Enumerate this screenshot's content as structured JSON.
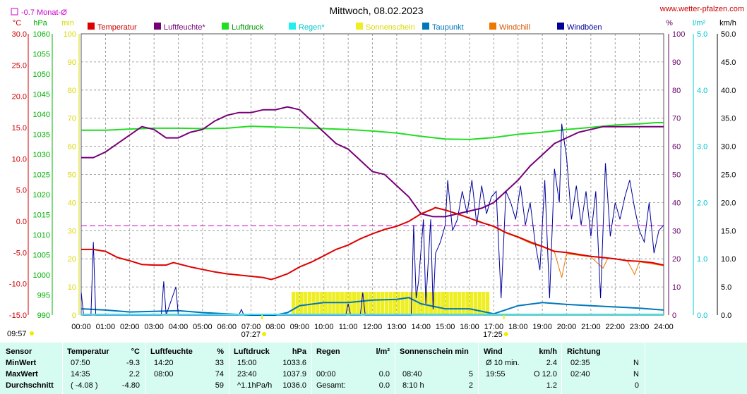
{
  "header": {
    "title": "Mittwoch, 08.02.2023",
    "site": "www.wetter-pfalzen.com",
    "avg_marker": "-0.7 Monat-Ø"
  },
  "chart_data": {
    "type": "line",
    "title": "Mittwoch, 08.02.2023",
    "x_ticks": [
      "00:00",
      "01:00",
      "02:00",
      "03:00",
      "04:00",
      "05:00",
      "06:00",
      "07:00",
      "08:00",
      "09:00",
      "10:00",
      "11:00",
      "12:00",
      "13:00",
      "14:00",
      "15:00",
      "16:00",
      "17:00",
      "18:00",
      "19:00",
      "20:00",
      "21:00",
      "22:00",
      "23:00",
      "24:00"
    ],
    "sunrise": "07:27",
    "sunset": "17:25",
    "top_left_time": "09:57",
    "axes": {
      "temperature": {
        "unit": "°C",
        "min": -15,
        "max": 30,
        "ticks": [
          "30.0",
          "25.0",
          "20.0",
          "15.0",
          "10.0",
          "5.0",
          "0.0",
          "-5.0",
          "-10.0",
          "-15.0"
        ],
        "color": "#cc0000"
      },
      "pressure": {
        "unit": "hPa",
        "min": 990,
        "max": 1060,
        "ticks": [
          "1060",
          "1055",
          "1050",
          "1045",
          "1040",
          "1035",
          "1030",
          "1025",
          "1020",
          "1015",
          "1010",
          "1005",
          "1000",
          "995",
          "990"
        ],
        "color": "#00b000"
      },
      "sunshine": {
        "unit": "min",
        "min": 0,
        "max": 100,
        "ticks": [
          "100",
          "90",
          "80",
          "70",
          "60",
          "50",
          "40",
          "30",
          "20",
          "10",
          "0"
        ],
        "color": "#d8d800"
      },
      "humidity": {
        "unit": "%",
        "min": 0,
        "max": 100,
        "ticks": [
          "100",
          "90",
          "80",
          "70",
          "60",
          "50",
          "40",
          "30",
          "20",
          "10",
          "0"
        ],
        "color": "#660066"
      },
      "rain": {
        "unit": "l/m²",
        "min": 0,
        "max": 5,
        "ticks": [
          "5.0",
          "4.0",
          "3.0",
          "2.0",
          "1.0",
          "0.0"
        ],
        "color": "#00c8d0"
      },
      "wind": {
        "unit": "km/h",
        "min": 0,
        "max": 50,
        "ticks": [
          "50.0",
          "45.0",
          "40.0",
          "35.0",
          "30.0",
          "25.0",
          "20.0",
          "15.0",
          "10.0",
          "5.0",
          "0.0"
        ],
        "color": "#000000"
      }
    },
    "legend": [
      {
        "name": "Temperatur",
        "color": "#dd0000",
        "text_color": "#cc0000"
      },
      {
        "name": "Luftfeuchte*",
        "color": "#770077",
        "text_color": "#770077"
      },
      {
        "name": "Luftdruck",
        "color": "#22dd22",
        "text_color": "#009900"
      },
      {
        "name": "Regen*",
        "color": "#22eeee",
        "text_color": "#00c8c8"
      },
      {
        "name": "Sonnenschein",
        "color": "#eeee22",
        "text_color": "#d8d800"
      },
      {
        "name": "Taupunkt",
        "color": "#0077bb",
        "text_color": "#0077bb"
      },
      {
        "name": "Windchill",
        "color": "#ee7700",
        "text_color": "#dd5500"
      },
      {
        "name": "Windböen",
        "color": "#000099",
        "text_color": "#000099"
      }
    ],
    "monthly_avg_temp": -0.7,
    "series": {
      "temperature": [
        [
          0,
          -4.5
        ],
        [
          0.5,
          -4.5
        ],
        [
          1,
          -4.8
        ],
        [
          1.5,
          -5.8
        ],
        [
          2,
          -6.3
        ],
        [
          2.5,
          -6.9
        ],
        [
          3,
          -7.0
        ],
        [
          3.5,
          -7.0
        ],
        [
          3.8,
          -6.6
        ],
        [
          4,
          -6.8
        ],
        [
          4.5,
          -7.3
        ],
        [
          5,
          -7.7
        ],
        [
          5.5,
          -8.1
        ],
        [
          6,
          -8.4
        ],
        [
          6.5,
          -8.6
        ],
        [
          7,
          -8.8
        ],
        [
          7.5,
          -9.0
        ],
        [
          7.83,
          -9.3
        ],
        [
          8,
          -9.1
        ],
        [
          8.5,
          -8.4
        ],
        [
          9,
          -7.3
        ],
        [
          9.5,
          -6.5
        ],
        [
          10,
          -5.5
        ],
        [
          10.5,
          -4.5
        ],
        [
          11,
          -3.8
        ],
        [
          11.5,
          -2.8
        ],
        [
          12,
          -2.0
        ],
        [
          12.5,
          -1.3
        ],
        [
          13,
          -0.8
        ],
        [
          13.5,
          0.0
        ],
        [
          14,
          1.2
        ],
        [
          14.5,
          2.0
        ],
        [
          14.58,
          2.2
        ],
        [
          15,
          1.8
        ],
        [
          15.5,
          1.2
        ],
        [
          16,
          0.5
        ],
        [
          16.5,
          -0.2
        ],
        [
          17,
          -0.8
        ],
        [
          17.5,
          -1.8
        ],
        [
          18,
          -2.5
        ],
        [
          18.5,
          -3.3
        ],
        [
          19,
          -4.0
        ],
        [
          19.5,
          -4.8
        ],
        [
          20,
          -5.0
        ],
        [
          20.5,
          -5.3
        ],
        [
          21,
          -5.6
        ],
        [
          21.5,
          -5.8
        ],
        [
          22,
          -6.0
        ],
        [
          22.5,
          -6.3
        ],
        [
          23,
          -6.4
        ],
        [
          23.5,
          -6.6
        ],
        [
          24,
          -7.0
        ]
      ],
      "windchill": [
        [
          16.3,
          0.2
        ],
        [
          17,
          -0.9
        ],
        [
          17.5,
          -1.9
        ],
        [
          18,
          -2.6
        ],
        [
          18.5,
          -3.5
        ],
        [
          19,
          -4.1
        ],
        [
          19.5,
          -4.9
        ],
        [
          19.8,
          -9.0
        ],
        [
          20,
          -5.2
        ],
        [
          21,
          -5.7
        ],
        [
          21.5,
          -7.5
        ],
        [
          21.7,
          -5.9
        ],
        [
          22.5,
          -6.3
        ],
        [
          22.8,
          -8.5
        ],
        [
          23,
          -6.5
        ],
        [
          24,
          -7.1
        ]
      ],
      "dewpoint": [
        [
          0,
          -14.0
        ],
        [
          1,
          -14.2
        ],
        [
          2,
          -14.5
        ],
        [
          3,
          -14.4
        ],
        [
          4,
          -14.3
        ],
        [
          5,
          -14.6
        ],
        [
          6,
          -14.8
        ],
        [
          7,
          -15.0
        ],
        [
          8,
          -15.0
        ],
        [
          8.5,
          -14.6
        ],
        [
          9,
          -13.5
        ],
        [
          10,
          -13.0
        ],
        [
          11,
          -13.0
        ],
        [
          12,
          -12.6
        ],
        [
          13,
          -12.5
        ],
        [
          13.5,
          -12.2
        ],
        [
          14,
          -13.2
        ],
        [
          15,
          -14.0
        ],
        [
          16,
          -14.0
        ],
        [
          17,
          -14.8
        ],
        [
          18,
          -13.5
        ],
        [
          19,
          -13.0
        ],
        [
          20,
          -13.3
        ],
        [
          21,
          -13.5
        ],
        [
          22,
          -13.7
        ],
        [
          23,
          -13.9
        ],
        [
          24,
          -14.2
        ]
      ],
      "humidity": [
        [
          0,
          56
        ],
        [
          0.5,
          56
        ],
        [
          1,
          58
        ],
        [
          1.5,
          61
        ],
        [
          2,
          64
        ],
        [
          2.5,
          67
        ],
        [
          3,
          66
        ],
        [
          3.5,
          63
        ],
        [
          4,
          63
        ],
        [
          4.5,
          65
        ],
        [
          5,
          66
        ],
        [
          5.5,
          69
        ],
        [
          6,
          71
        ],
        [
          6.5,
          72
        ],
        [
          7,
          72
        ],
        [
          7.5,
          73
        ],
        [
          8,
          73
        ],
        [
          8.5,
          74
        ],
        [
          9,
          73
        ],
        [
          9.5,
          69
        ],
        [
          10,
          65
        ],
        [
          10.5,
          61
        ],
        [
          11,
          59
        ],
        [
          11.5,
          55
        ],
        [
          12,
          51
        ],
        [
          12.5,
          50
        ],
        [
          13,
          46
        ],
        [
          13.5,
          42
        ],
        [
          14,
          36
        ],
        [
          14.5,
          35
        ],
        [
          15,
          35
        ],
        [
          15.5,
          36
        ],
        [
          16,
          37
        ],
        [
          16.5,
          38
        ],
        [
          17,
          40
        ],
        [
          17.5,
          44
        ],
        [
          18,
          48
        ],
        [
          18.5,
          53
        ],
        [
          19,
          57
        ],
        [
          19.5,
          61
        ],
        [
          20,
          63
        ],
        [
          20.5,
          65
        ],
        [
          21,
          66
        ],
        [
          21.5,
          67
        ],
        [
          22,
          67
        ],
        [
          22.5,
          67
        ],
        [
          23,
          67
        ],
        [
          24,
          67
        ]
      ],
      "pressure": [
        [
          0,
          1036.0
        ],
        [
          1,
          1036.0
        ],
        [
          2,
          1036.3
        ],
        [
          3,
          1036.5
        ],
        [
          4,
          1036.5
        ],
        [
          5,
          1036.4
        ],
        [
          6,
          1036.5
        ],
        [
          7,
          1037.0
        ],
        [
          8,
          1036.8
        ],
        [
          9,
          1036.6
        ],
        [
          10,
          1036.4
        ],
        [
          11,
          1036.2
        ],
        [
          12,
          1035.8
        ],
        [
          13,
          1035.3
        ],
        [
          14,
          1034.5
        ],
        [
          15,
          1033.8
        ],
        [
          16,
          1033.7
        ],
        [
          17,
          1034.2
        ],
        [
          18,
          1035.0
        ],
        [
          19,
          1035.5
        ],
        [
          20,
          1036.2
        ],
        [
          21,
          1036.7
        ],
        [
          22,
          1037.3
        ],
        [
          23,
          1037.6
        ],
        [
          23.67,
          1037.9
        ],
        [
          24,
          1037.9
        ]
      ],
      "gusts": [
        [
          0,
          4
        ],
        [
          0.1,
          0
        ],
        [
          0.4,
          0
        ],
        [
          0.5,
          13
        ],
        [
          0.6,
          0
        ],
        [
          3.3,
          0
        ],
        [
          3.4,
          6
        ],
        [
          3.5,
          0
        ],
        [
          3.9,
          5
        ],
        [
          4,
          0
        ],
        [
          6.5,
          0
        ],
        [
          6.6,
          1
        ],
        [
          6.7,
          0
        ],
        [
          10.9,
          0
        ],
        [
          11,
          2
        ],
        [
          11.1,
          0
        ],
        [
          11.5,
          0
        ],
        [
          11.6,
          4
        ],
        [
          11.7,
          0
        ],
        [
          12.5,
          0
        ],
        [
          13.6,
          0
        ],
        [
          13.7,
          16
        ],
        [
          13.8,
          3
        ],
        [
          13.9,
          6
        ],
        [
          14.1,
          17
        ],
        [
          14.2,
          2
        ],
        [
          14.4,
          17
        ],
        [
          14.5,
          1
        ],
        [
          14.6,
          11
        ],
        [
          14.8,
          13
        ],
        [
          15,
          16
        ],
        [
          15.1,
          24
        ],
        [
          15.3,
          15
        ],
        [
          15.5,
          17
        ],
        [
          15.7,
          22
        ],
        [
          15.9,
          18
        ],
        [
          16.1,
          24
        ],
        [
          16.3,
          16
        ],
        [
          16.5,
          23
        ],
        [
          16.7,
          18
        ],
        [
          16.9,
          21
        ],
        [
          17.1,
          22
        ],
        [
          17.3,
          3
        ],
        [
          17.5,
          22
        ],
        [
          17.7,
          20
        ],
        [
          17.9,
          17
        ],
        [
          18.1,
          23
        ],
        [
          18.3,
          16
        ],
        [
          18.5,
          20
        ],
        [
          18.7,
          13
        ],
        [
          18.9,
          8
        ],
        [
          19.1,
          24
        ],
        [
          19.3,
          3
        ],
        [
          19.5,
          26
        ],
        [
          19.7,
          20
        ],
        [
          19.8,
          34
        ],
        [
          20,
          28
        ],
        [
          20.2,
          17
        ],
        [
          20.4,
          23
        ],
        [
          20.6,
          16
        ],
        [
          20.8,
          22
        ],
        [
          21,
          14
        ],
        [
          21.2,
          22
        ],
        [
          21.4,
          3
        ],
        [
          21.6,
          27
        ],
        [
          21.8,
          14
        ],
        [
          22,
          20
        ],
        [
          22.2,
          17
        ],
        [
          22.4,
          21
        ],
        [
          22.6,
          24
        ],
        [
          22.8,
          19
        ],
        [
          23,
          15
        ],
        [
          23.2,
          13
        ],
        [
          23.4,
          20
        ],
        [
          23.6,
          11
        ],
        [
          23.8,
          15
        ],
        [
          24,
          16
        ]
      ],
      "sunshine_minutes": {
        "start": 8.67,
        "end": 16.83,
        "value": 5
      }
    }
  },
  "stats": {
    "headers": {
      "sensor": "Sensor",
      "temperature": "Temperatur",
      "temperature_unit": "°C",
      "humidity": "Luftfeuchte",
      "humidity_unit": "%",
      "pressure": "Luftdruck",
      "pressure_unit": "hPa",
      "rain": "Regen",
      "rain_unit": "l/m²",
      "sunshine": "Sonnenschein min",
      "wind": "Wind",
      "wind_unit": "km/h",
      "direction": "Richtung"
    },
    "rows": [
      {
        "label": "MinWert",
        "t_time": "07:50",
        "t_val": "-9.3",
        "h_time": "14:20",
        "h_val": "33",
        "p_time": "15:00",
        "p_val": "1033.6",
        "r_time": "",
        "r_val": "",
        "s_time": "",
        "s_val": "",
        "w_time": "Ø 10 min.",
        "w_val": "2.4",
        "d_time": "02:35",
        "d_val": "N"
      },
      {
        "label": "MaxWert",
        "t_time": "14:35",
        "t_val": "2.2",
        "h_time": "08:00",
        "h_val": "74",
        "p_time": "23:40",
        "p_val": "1037.9",
        "r_time": "00:00",
        "r_val": "0.0",
        "s_time": "08:40",
        "s_val": "5",
        "w_time": "19:55",
        "w_val": "O 12.0",
        "d_time": "02:40",
        "d_val": "N"
      },
      {
        "label": "Durchschnitt",
        "t_time": "( -4.08 )",
        "t_val": "-4.80",
        "h_time": "",
        "h_val": "59",
        "p_time": "^1.1hPa/h",
        "p_val": "1036.0",
        "r_time": "Gesamt:",
        "r_val": "0.0",
        "s_time": "8:10 h",
        "s_val": "2",
        "w_time": "",
        "w_val": "1.2",
        "d_time": "",
        "d_val": "0"
      }
    ]
  }
}
